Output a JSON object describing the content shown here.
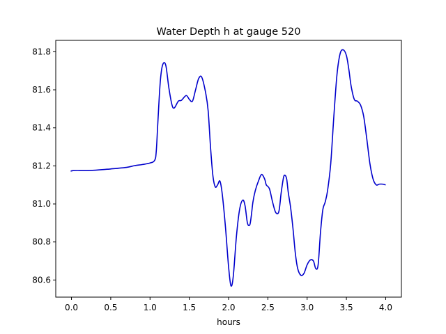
{
  "chart_data": {
    "type": "line",
    "title": "Water Depth h at gauge 520",
    "xlabel": "hours",
    "ylabel": "",
    "xlim": [
      -0.2,
      4.2
    ],
    "ylim": [
      80.51,
      81.86
    ],
    "xticks": [
      0.0,
      0.5,
      1.0,
      1.5,
      2.0,
      2.5,
      3.0,
      3.5,
      4.0
    ],
    "xtick_labels": [
      "0.0",
      "0.5",
      "1.0",
      "1.5",
      "2.0",
      "2.5",
      "3.0",
      "3.5",
      "4.0"
    ],
    "yticks": [
      80.6,
      80.8,
      81.0,
      81.2,
      81.4,
      81.6,
      81.8
    ],
    "ytick_labels": [
      "80.6",
      "80.8",
      "81.0",
      "81.2",
      "81.4",
      "81.6",
      "81.8"
    ],
    "grid": false,
    "series_color": "#0000cc",
    "series": [
      {
        "x": [
          0.0,
          0.02,
          0.25,
          0.5,
          0.7,
          0.8,
          0.9,
          1.0,
          1.06,
          1.08,
          1.1,
          1.13,
          1.16,
          1.2,
          1.24,
          1.28,
          1.31,
          1.36,
          1.4,
          1.46,
          1.5,
          1.54,
          1.58,
          1.62,
          1.66,
          1.71,
          1.74,
          1.77,
          1.8,
          1.83,
          1.86,
          1.89,
          1.92,
          1.96,
          2.0,
          2.03,
          2.06,
          2.1,
          2.14,
          2.18,
          2.21,
          2.24,
          2.27,
          2.29,
          2.31,
          2.34,
          2.38,
          2.42,
          2.46,
          2.48,
          2.52,
          2.56,
          2.6,
          2.64,
          2.67,
          2.7,
          2.72,
          2.74,
          2.76,
          2.79,
          2.82,
          2.85,
          2.88,
          2.92,
          2.96,
          3.0,
          3.04,
          3.08,
          3.11,
          3.14,
          3.17,
          3.2,
          3.23,
          3.26,
          3.3,
          3.34,
          3.38,
          3.42,
          3.46,
          3.5,
          3.53,
          3.56,
          3.6,
          3.64,
          3.68,
          3.72,
          3.76,
          3.8,
          3.84,
          3.88,
          3.92,
          3.96,
          4.0
        ],
        "y": [
          81.17,
          81.175,
          81.176,
          81.184,
          81.192,
          81.201,
          81.207,
          81.215,
          81.23,
          81.28,
          81.43,
          81.64,
          81.73,
          81.73,
          81.61,
          81.52,
          81.505,
          81.54,
          81.545,
          81.57,
          81.55,
          81.54,
          81.6,
          81.66,
          81.665,
          81.58,
          81.49,
          81.3,
          81.15,
          81.09,
          81.1,
          81.12,
          81.05,
          80.88,
          80.67,
          80.57,
          80.62,
          80.83,
          80.97,
          81.02,
          80.99,
          80.9,
          80.89,
          80.94,
          81.01,
          81.07,
          81.12,
          81.155,
          81.13,
          81.1,
          81.08,
          81.01,
          80.955,
          80.96,
          81.06,
          81.14,
          81.15,
          81.13,
          81.06,
          80.98,
          80.87,
          80.74,
          80.66,
          80.625,
          80.635,
          80.68,
          80.705,
          80.7,
          80.66,
          80.68,
          80.85,
          80.97,
          81.01,
          81.07,
          81.21,
          81.46,
          81.68,
          81.79,
          81.81,
          81.78,
          81.71,
          81.62,
          81.55,
          81.54,
          81.52,
          81.46,
          81.34,
          81.21,
          81.13,
          81.1,
          81.104,
          81.104,
          81.1
        ]
      }
    ]
  }
}
